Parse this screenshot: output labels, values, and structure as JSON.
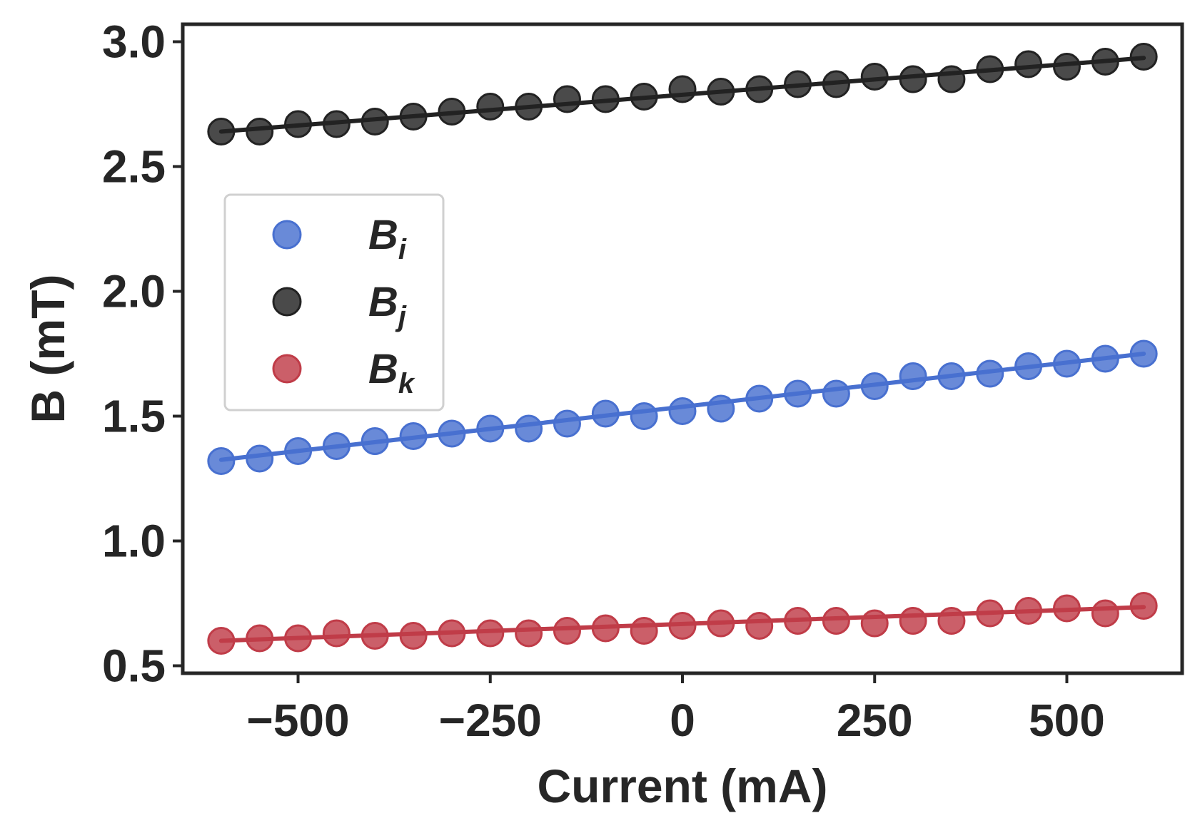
{
  "chart_data": {
    "type": "scatter",
    "title": "",
    "xlabel": "Current (mA)",
    "ylabel": "B (mT)",
    "xlim": [
      -650,
      650
    ],
    "ylim": [
      0.47,
      3.07
    ],
    "xticks": [
      -500,
      -250,
      0,
      250,
      500
    ],
    "xtick_labels": [
      "−500",
      "−250",
      "0",
      "250",
      "500"
    ],
    "yticks": [
      0.5,
      1.0,
      1.5,
      2.0,
      2.5,
      3.0
    ],
    "ytick_labels": [
      "0.5",
      "1.0",
      "1.5",
      "2.0",
      "2.5",
      "3.0"
    ],
    "grid": false,
    "legend_position": "center-left",
    "x": [
      -600,
      -550,
      -500,
      -450,
      -400,
      -350,
      -300,
      -250,
      -200,
      -150,
      -100,
      -50,
      0,
      50,
      100,
      150,
      200,
      250,
      300,
      350,
      400,
      450,
      500,
      550,
      600
    ],
    "series": [
      {
        "name": "B_i",
        "label_base": "B",
        "label_sub": "i",
        "color": "#4870d0",
        "values": [
          1.32,
          1.33,
          1.36,
          1.38,
          1.4,
          1.42,
          1.43,
          1.45,
          1.45,
          1.47,
          1.51,
          1.5,
          1.52,
          1.53,
          1.57,
          1.59,
          1.59,
          1.62,
          1.66,
          1.66,
          1.67,
          1.7,
          1.71,
          1.73,
          1.75
        ],
        "fit": [
          1.325,
          1.75
        ]
      },
      {
        "name": "B_j",
        "label_base": "B",
        "label_sub": "j",
        "color": "#222222",
        "values": [
          2.64,
          2.64,
          2.67,
          2.67,
          2.68,
          2.7,
          2.72,
          2.74,
          2.74,
          2.77,
          2.77,
          2.78,
          2.81,
          2.8,
          2.81,
          2.83,
          2.83,
          2.86,
          2.85,
          2.85,
          2.89,
          2.91,
          2.9,
          2.92,
          2.94
        ],
        "fit": [
          2.64,
          2.935
        ]
      },
      {
        "name": "B_k",
        "label_base": "B",
        "label_sub": "k",
        "color": "#c03c48",
        "values": [
          0.6,
          0.61,
          0.61,
          0.63,
          0.62,
          0.62,
          0.63,
          0.63,
          0.63,
          0.64,
          0.65,
          0.64,
          0.66,
          0.67,
          0.66,
          0.68,
          0.68,
          0.67,
          0.68,
          0.68,
          0.71,
          0.72,
          0.73,
          0.71,
          0.74
        ],
        "fit": [
          0.6,
          0.735
        ]
      }
    ]
  }
}
